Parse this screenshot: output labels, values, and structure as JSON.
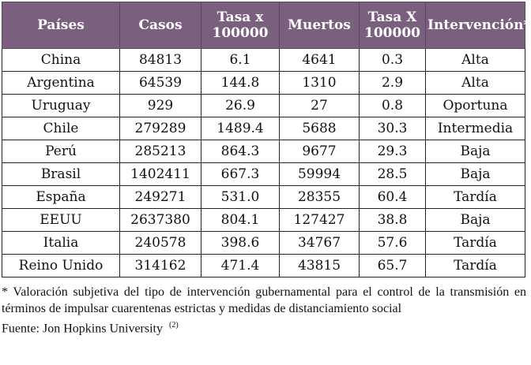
{
  "table": {
    "headers": [
      "Países",
      "Casos",
      "Tasa x\n100000",
      "Muertos",
      "Tasa X\n100000",
      "Intervención*"
    ],
    "rows": [
      [
        "China",
        "84813",
        "6.1",
        "4641",
        "0.3",
        "Alta"
      ],
      [
        "Argentina",
        "64539",
        "144.8",
        "1310",
        "2.9",
        "Alta"
      ],
      [
        "Uruguay",
        "929",
        "26.9",
        "27",
        "0.8",
        "Oportuna"
      ],
      [
        "Chile",
        "279289",
        "1489.4",
        "5688",
        "30.3",
        "Intermedia"
      ],
      [
        "Perú",
        "285213",
        "864.3",
        "9677",
        "29.3",
        "Baja"
      ],
      [
        "Brasil",
        "1402411",
        "667.3",
        "59994",
        "28.5",
        "Baja"
      ],
      [
        "España",
        "249271",
        "531.0",
        "28355",
        "60.4",
        "Tardía"
      ],
      [
        "EEUU",
        "2637380",
        "804.1",
        "127427",
        "38.8",
        "Baja"
      ],
      [
        "Italia",
        "240578",
        "398.6",
        "34767",
        "57.6",
        "Tardía"
      ],
      [
        "Reino Unido",
        "314162",
        "471.4",
        "43815",
        "65.7",
        "Tardía"
      ]
    ]
  },
  "footnote": "* Valoración subjetiva del tipo de intervención gubernamental para el control de la transmisión en términos de impulsar cuarentenas estrictas y medidas de distanciamiento social",
  "source": {
    "text": "Fuente: Jon Hopkins University",
    "ref": "(2)"
  },
  "colors": {
    "header_bg": "#7a5f7e",
    "header_text": "#ffffff"
  }
}
